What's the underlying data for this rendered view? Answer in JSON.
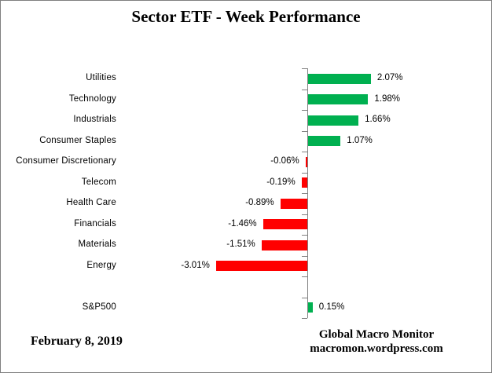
{
  "title": "Sector ETF - Week Performance",
  "footer": {
    "date": "February 8, 2019",
    "credit_line1": "Global Macro Monitor",
    "credit_line2": "macromon.wordpress.com"
  },
  "colors": {
    "positive_bar": "#00B050",
    "negative_bar": "#FF0000",
    "axis": "#808080",
    "text": "#000000"
  },
  "chart_data": {
    "type": "bar",
    "orientation": "horizontal",
    "title": "Sector ETF - Week Performance",
    "xlabel": "",
    "ylabel": "",
    "xlim": [
      -3.5,
      3.5
    ],
    "grid": false,
    "legend": false,
    "value_format": "percent",
    "categories": [
      "Utilities",
      "Technology",
      "Industrials",
      "Consumer Staples",
      "Consumer Discretionary",
      "Telecom",
      "Health Care",
      "Financials",
      "Materials",
      "Energy",
      "",
      "S&P500"
    ],
    "values": [
      2.07,
      1.98,
      1.66,
      1.07,
      -0.06,
      -0.19,
      -0.89,
      -1.46,
      -1.51,
      -3.01,
      null,
      0.15
    ],
    "value_labels": [
      "2.07%",
      "1.98%",
      "1.66%",
      "1.07%",
      "-0.06%",
      "-0.19%",
      "-0.89%",
      "-1.46%",
      "-1.51%",
      "-3.01%",
      "",
      "0.15%"
    ]
  }
}
